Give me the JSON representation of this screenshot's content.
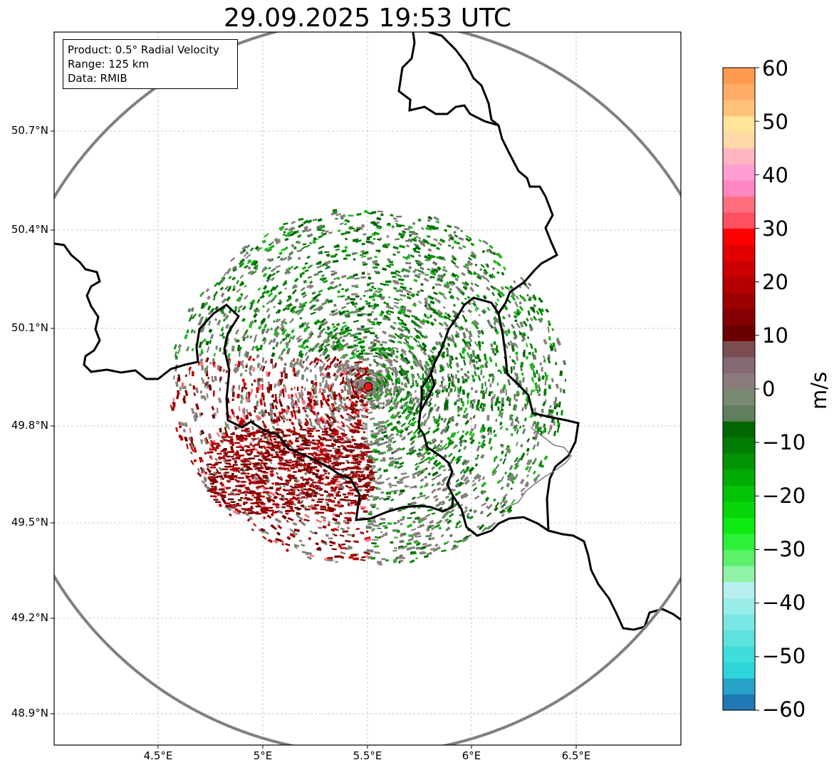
{
  "title": "29.09.2025 19:53 UTC",
  "info": {
    "product": "Product: 0.5° Radial Velocity",
    "range": "Range: 125 km",
    "source": "Data: RMIB"
  },
  "axes": {
    "lat_ticks": [
      "50.7°N",
      "50.4°N",
      "50.1°N",
      "49.8°N",
      "49.5°N",
      "49.2°N",
      "48.9°N"
    ],
    "lon_ticks": [
      "4.5°E",
      "5°E",
      "5.5°E",
      "6°E",
      "6.5°E"
    ],
    "lat_range": [
      48.8,
      50.99
    ],
    "lon_range": [
      4.0,
      7.0
    ]
  },
  "radar": {
    "site_lat": 49.91,
    "site_lon": 5.51,
    "range_km": 125,
    "site_marker_color": "#e8141b"
  },
  "colorbar": {
    "label": "m/s",
    "min": -60,
    "max": 60,
    "ticks": [
      "60",
      "50",
      "40",
      "30",
      "20",
      "10",
      "0",
      "−10",
      "−20",
      "−30",
      "−40",
      "−50",
      "−60"
    ],
    "colors": [
      "#1f78b4",
      "#27a2c9",
      "#2ed6d9",
      "#40dddd",
      "#5ee2e0",
      "#7be7e4",
      "#9aece9",
      "#b7f0ef",
      "#8ff2a7",
      "#5cf06b",
      "#2ef038",
      "#0dea12",
      "#06d60a",
      "#04c206",
      "#03ab05",
      "#039405",
      "#027d03",
      "#016601",
      "#5f7f5f",
      "#7a8a70",
      "#8b7b7b",
      "#846a72",
      "#7c4d50",
      "#6b0000",
      "#850000",
      "#9c0000",
      "#b40000",
      "#cc0000",
      "#e50000",
      "#ff0000",
      "#ff5060",
      "#ff6f80",
      "#ff86c0",
      "#ff9ed0",
      "#ffb6c0",
      "#ffd9a8",
      "#ffe49a",
      "#ffc278",
      "#ffad66",
      "#ff9a50"
    ]
  }
}
